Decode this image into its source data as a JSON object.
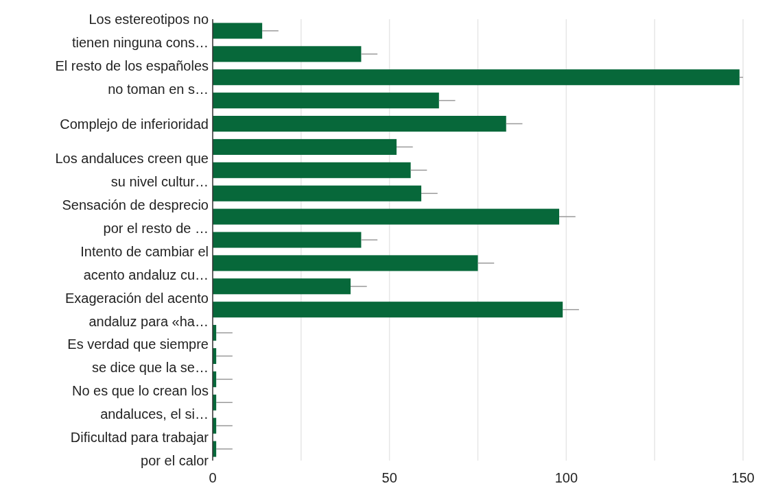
{
  "chart_data": {
    "type": "bar",
    "orientation": "horizontal",
    "categories": [
      "Los estereotipos no\ntienen ninguna cons…",
      null,
      "El resto de los españoles\nno toman en s…",
      null,
      "Complejo de inferioridad",
      null,
      "Los andaluces creen que\nsu nivel cultur…",
      null,
      "Sensación de desprecio\npor el resto de …",
      null,
      "Intento de cambiar el\nacento andaluz cu…",
      null,
      "Exageración del acento\nandaluz para «ha…",
      null,
      "Es verdad que siempre\nse dice que la se…",
      null,
      "No es que lo crean los\nandaluces, el si…",
      null,
      "Dificultad para trabajar\npor el calor"
    ],
    "values": [
      14,
      42,
      149,
      64,
      83,
      52,
      56,
      59,
      98,
      42,
      75,
      39,
      99,
      1,
      1,
      1,
      1,
      1,
      1
    ],
    "errors": [
      [
        14,
        18.6
      ],
      [
        42,
        46.6
      ],
      [
        149,
        150
      ],
      [
        64,
        68.6
      ],
      [
        83,
        87.6
      ],
      [
        52,
        56.6
      ],
      [
        56,
        60.6
      ],
      [
        59,
        63.6
      ],
      [
        98,
        102.6
      ],
      [
        42,
        46.6
      ],
      [
        75,
        79.6
      ],
      [
        39,
        43.6
      ],
      [
        99,
        103.6
      ],
      [
        1,
        5.6
      ],
      [
        1,
        5.6
      ],
      [
        1,
        5.6
      ],
      [
        1,
        5.6
      ],
      [
        1,
        5.6
      ],
      [
        1,
        5.6
      ]
    ],
    "color": "#07683a",
    "xlim": [
      0,
      150
    ],
    "xticks": [
      0,
      {
        "value": 25,
        "label": null
      },
      50,
      {
        "value": 75,
        "label": null
      },
      100,
      {
        "value": 125,
        "label": null
      },
      150
    ],
    "grid": "x"
  }
}
